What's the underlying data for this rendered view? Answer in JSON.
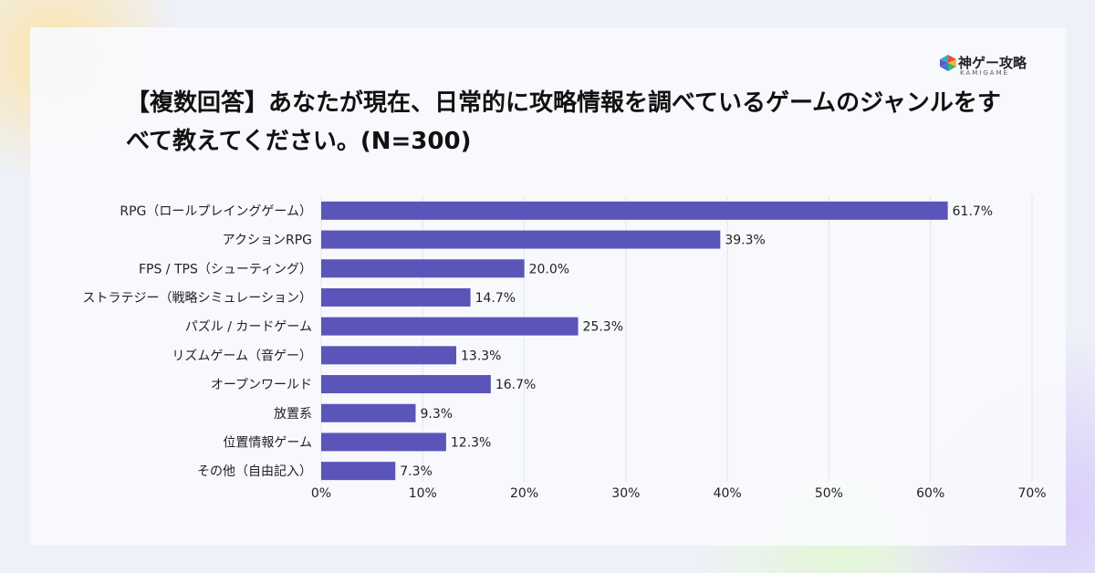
{
  "logo": {
    "name": "神ゲー攻略",
    "sub": "KAMIGAME"
  },
  "chart_data": {
    "type": "barh",
    "title": "【複数回答】あなたが現在、日常的に攻略情報を調べているゲームのジャンルをすべて教えてください。(N=300)",
    "categories": [
      "RPG（ロールプレイングゲーム）",
      "アクションRPG",
      "FPS / TPS（シューティング）",
      "ストラテジー（戦略シミュレーション）",
      "パズル / カードゲーム",
      "リズムゲーム（音ゲー）",
      "オープンワールド",
      "放置系",
      "位置情報ゲーム",
      "その他（自由記入）"
    ],
    "values": [
      61.7,
      39.3,
      20.0,
      14.7,
      25.3,
      13.3,
      16.7,
      9.3,
      12.3,
      7.3
    ],
    "value_labels": [
      "61.7%",
      "39.3%",
      "20.0%",
      "14.7%",
      "25.3%",
      "13.3%",
      "16.7%",
      "9.3%",
      "12.3%",
      "7.3%"
    ],
    "color": "#5b55b9",
    "xlim": [
      0,
      70
    ],
    "xticks": [
      {
        "value": 0,
        "label": "0%"
      },
      {
        "value": 10,
        "label": "10%"
      },
      {
        "value": 20,
        "label": "20%"
      },
      {
        "value": 30,
        "label": "30%"
      },
      {
        "value": 40,
        "label": "40%"
      },
      {
        "value": 50,
        "label": "50%"
      },
      {
        "value": 60,
        "label": "60%"
      },
      {
        "value": 70,
        "label": "70%"
      }
    ],
    "grid": true
  }
}
